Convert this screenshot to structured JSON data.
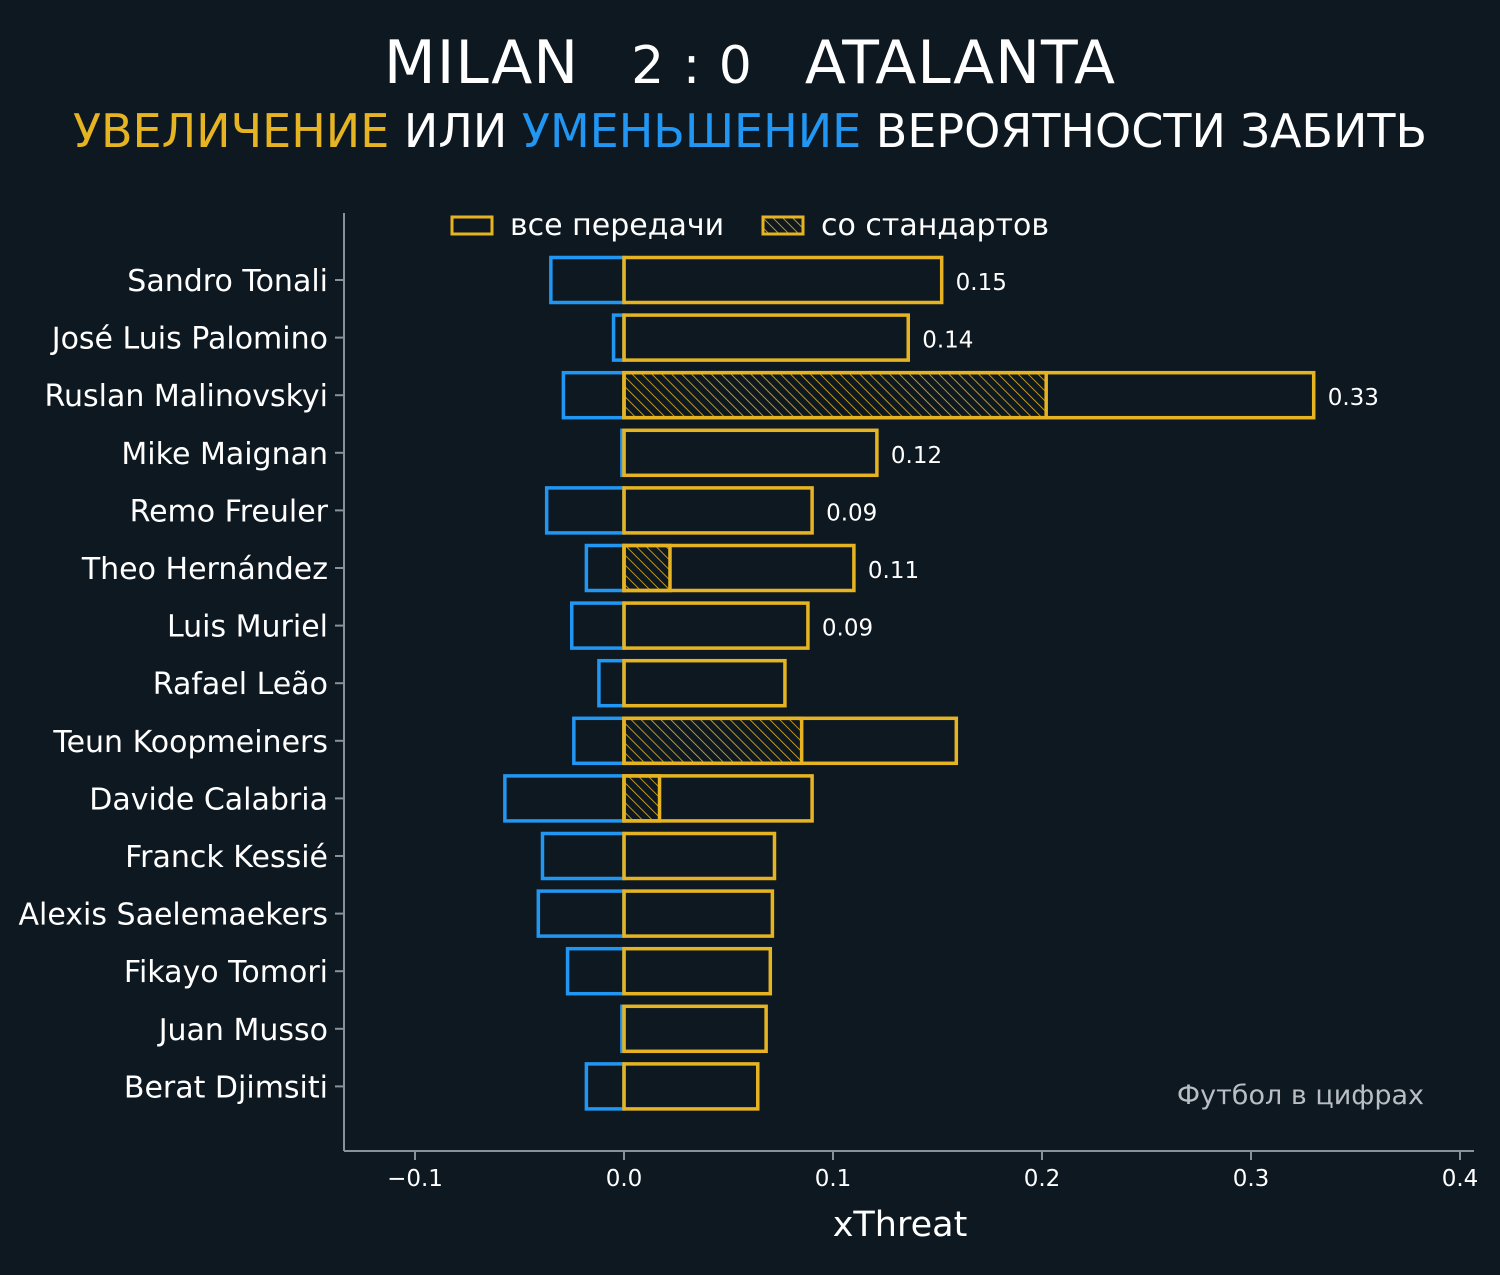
{
  "header": {
    "home_team": "MILAN",
    "score": "2 : 0",
    "away_team": "ATALANTA",
    "subtitle_increase": "УВЕЛИЧЕНИЕ",
    "subtitle_or": " ИЛИ ",
    "subtitle_decrease": "УМЕНЬШЕНИЕ",
    "subtitle_rest": " ВЕРОЯТНОСТИ ЗАБИТЬ"
  },
  "watermark": "Футбол в цифрах",
  "colors": {
    "background": "#0e1820",
    "increase": "#e6b422",
    "decrease": "#2196f3",
    "axis": "#8a9299",
    "text": "#ffffff"
  },
  "chart_data": {
    "type": "bar",
    "orientation": "horizontal",
    "xlabel": "xThreat",
    "xlim": [
      -0.135,
      0.405
    ],
    "xticks": [
      -0.1,
      0.0,
      0.1,
      0.2,
      0.3,
      0.4
    ],
    "xtick_labels": [
      "−0.1",
      "0.0",
      "0.1",
      "0.2",
      "0.3",
      "0.4"
    ],
    "legend": {
      "placement": "top-center",
      "entries": [
        {
          "label": "все передачи",
          "style": "outline"
        },
        {
          "label": "со стандартов",
          "style": "hatched"
        }
      ]
    },
    "categories": [
      "Sandro Tonali",
      "José Luis Palomino",
      "Ruslan Malinovskyi",
      "Mike Maignan",
      "Remo Freuler",
      "Theo Hernández",
      "Luis Muriel",
      "Rafael Leão",
      "Teun Koopmeiners",
      "Davide Calabria",
      "Franck Kessié",
      "Alexis Saelemaekers",
      "Fikayo Tomori",
      "Juan Musso",
      "Berat Djimsiti"
    ],
    "series": [
      {
        "name": "positive",
        "values": [
          0.152,
          0.136,
          0.33,
          0.121,
          0.09,
          0.11,
          0.088,
          0.077,
          0.159,
          0.09,
          0.072,
          0.071,
          0.07,
          0.068,
          0.064
        ]
      },
      {
        "name": "negative",
        "values": [
          -0.035,
          -0.005,
          -0.029,
          -0.001,
          -0.037,
          -0.018,
          -0.025,
          -0.012,
          -0.024,
          -0.057,
          -0.039,
          -0.041,
          -0.027,
          -0.001,
          -0.018
        ]
      },
      {
        "name": "со стандартов",
        "values": [
          0,
          0,
          0.202,
          0,
          0,
          0.022,
          0,
          0,
          0.085,
          0.017,
          0,
          0,
          0,
          0,
          0
        ]
      }
    ],
    "value_labels": [
      "0.15",
      "0.14",
      "0.33",
      "0.12",
      "0.09",
      "0.11",
      "0.09",
      "",
      "",
      "",
      "",
      "",
      "",
      "",
      ""
    ]
  }
}
